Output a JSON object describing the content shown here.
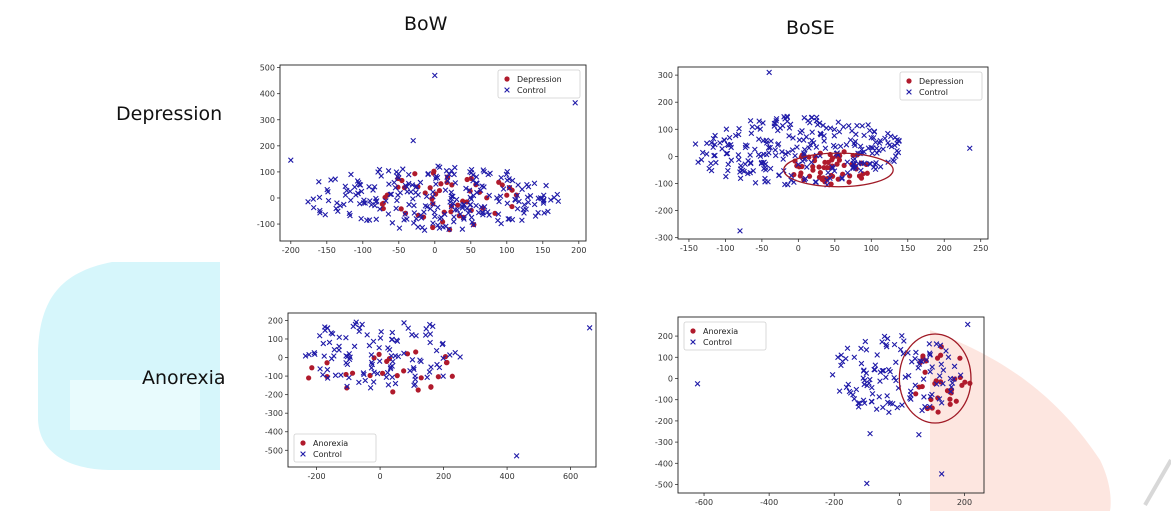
{
  "column_titles": [
    "BoW",
    "BoSE"
  ],
  "row_titles": [
    "Depression",
    "Anorexia"
  ],
  "colors": {
    "positive": "#b01a2c",
    "control": "#1f1aa8",
    "ellipse": "#a01a26",
    "watermark_cyan": "#d6f6fb",
    "watermark_pink": "#fde6e0"
  },
  "chart_data": [
    {
      "id": "bow-depression",
      "type": "scatter",
      "title": "",
      "xlabel": "",
      "ylabel": "",
      "xlim": [
        -215,
        210
      ],
      "ylim": [
        -165,
        510
      ],
      "xticks": [
        -200,
        -150,
        -100,
        -50,
        0,
        50,
        100,
        150,
        200
      ],
      "yticks": [
        -100,
        0,
        100,
        200,
        300,
        400,
        500
      ],
      "legend": {
        "position": "top-right",
        "entries": [
          "Depression",
          "Control"
        ]
      },
      "grid": false,
      "series": [
        {
          "name": "Depression",
          "marker": "circle",
          "cloud": {
            "n": 55,
            "cx": 20,
            "cy": -10,
            "rx": 115,
            "ry": 115,
            "seed": 11
          },
          "values": []
        },
        {
          "name": "Control",
          "marker": "x",
          "cloud": {
            "n": 250,
            "cx": -5,
            "cy": 0,
            "rx": 180,
            "ry": 125,
            "seed": 12
          },
          "values": [
            [
              0,
              470
            ],
            [
              195,
              365
            ],
            [
              -200,
              145
            ],
            [
              -30,
              220
            ]
          ]
        }
      ]
    },
    {
      "id": "bose-depression",
      "type": "scatter",
      "title": "",
      "xlabel": "",
      "ylabel": "",
      "xlim": [
        -165,
        260
      ],
      "ylim": [
        -305,
        330
      ],
      "xticks": [
        -150,
        -100,
        -50,
        0,
        50,
        100,
        150,
        200,
        250
      ],
      "yticks": [
        -300,
        -200,
        -100,
        0,
        100,
        200,
        300
      ],
      "legend": {
        "position": "top-right",
        "entries": [
          "Depression",
          "Control"
        ]
      },
      "grid": false,
      "ellipse": {
        "cx": 55,
        "cy": -50,
        "rx": 75,
        "ry": 62
      },
      "series": [
        {
          "name": "Depression",
          "marker": "circle",
          "cloud": {
            "n": 60,
            "cx": 45,
            "cy": -45,
            "rx": 55,
            "ry": 75,
            "seed": 21
          },
          "values": []
        },
        {
          "name": "Control",
          "marker": "x",
          "cloud": {
            "n": 260,
            "cx": 0,
            "cy": 20,
            "rx": 145,
            "ry": 130,
            "seed": 22
          },
          "values": [
            [
              -40,
              310
            ],
            [
              235,
              30
            ],
            [
              -80,
              -275
            ]
          ]
        }
      ]
    },
    {
      "id": "bow-anorexia",
      "type": "scatter",
      "title": "",
      "xlabel": "",
      "ylabel": "",
      "xlim": [
        -290,
        680
      ],
      "ylim": [
        -590,
        240
      ],
      "xticks": [
        -200,
        0,
        200,
        400,
        600
      ],
      "yticks": [
        -500,
        -400,
        -300,
        -200,
        -100,
        0,
        100,
        200
      ],
      "legend": {
        "position": "bottom-left",
        "entries": [
          "Anorexia",
          "Control"
        ]
      },
      "grid": false,
      "series": [
        {
          "name": "Anorexia",
          "marker": "circle",
          "cloud": {
            "n": 22,
            "cx": 20,
            "cy": -60,
            "rx": 220,
            "ry": 130,
            "seed": 31
          },
          "values": [
            [
              -215,
              -55
            ],
            [
              -225,
              -110
            ],
            [
              120,
              -175
            ],
            [
              160,
              -160
            ],
            [
              40,
              -185
            ]
          ]
        },
        {
          "name": "Control",
          "marker": "x",
          "cloud": {
            "n": 115,
            "cx": 0,
            "cy": 20,
            "rx": 260,
            "ry": 200,
            "seed": 32
          },
          "values": [
            [
              660,
              160
            ],
            [
              430,
              -530
            ]
          ]
        }
      ]
    },
    {
      "id": "bose-anorexia",
      "type": "scatter",
      "title": "",
      "xlabel": "",
      "ylabel": "",
      "xlim": [
        -680,
        260
      ],
      "ylim": [
        -540,
        290
      ],
      "xticks": [
        -600,
        -400,
        -200,
        0,
        200
      ],
      "yticks": [
        -500,
        -400,
        -300,
        -200,
        -100,
        0,
        100,
        200
      ],
      "legend": {
        "position": "top-left",
        "entries": [
          "Anorexia",
          "Control"
        ]
      },
      "grid": false,
      "ellipse": {
        "cx": 110,
        "cy": 0,
        "rx": 110,
        "ry": 210
      },
      "series": [
        {
          "name": "Anorexia",
          "marker": "circle",
          "cloud": {
            "n": 32,
            "cx": 130,
            "cy": -10,
            "rx": 90,
            "ry": 160,
            "seed": 41
          },
          "values": []
        },
        {
          "name": "Control",
          "marker": "x",
          "cloud": {
            "n": 120,
            "cx": -10,
            "cy": 20,
            "rx": 200,
            "ry": 190,
            "seed": 42
          },
          "values": [
            [
              -620,
              -25
            ],
            [
              210,
              255
            ],
            [
              -90,
              -260
            ],
            [
              -100,
              -495
            ],
            [
              130,
              -450
            ],
            [
              60,
              -265
            ]
          ]
        }
      ]
    }
  ]
}
